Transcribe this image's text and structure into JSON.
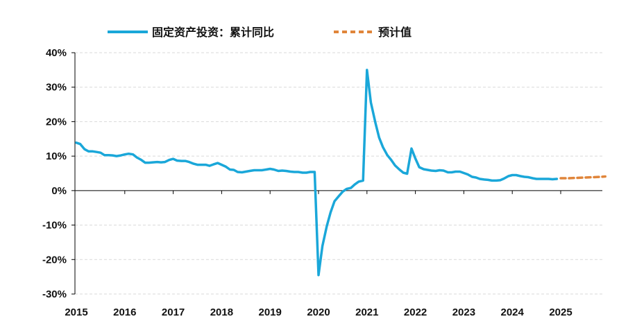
{
  "chart_data": {
    "type": "line",
    "title": "",
    "xlabel": "",
    "ylabel": "",
    "ylim": [
      -30,
      40
    ],
    "y_ticks": [
      "40%",
      "30%",
      "20%",
      "10%",
      "0%",
      "-10%",
      "-20%",
      "-30%"
    ],
    "y_tick_values": [
      40,
      30,
      20,
      10,
      0,
      -10,
      -20,
      -30
    ],
    "x_ticks": [
      "2015",
      "2016",
      "2017",
      "2018",
      "2019",
      "2020",
      "2021",
      "2022",
      "2023",
      "2024",
      "2025"
    ],
    "x_tick_values": [
      2015,
      2016,
      2017,
      2018,
      2019,
      2020,
      2021,
      2022,
      2023,
      2024,
      2025
    ],
    "xlim": [
      2015,
      2025.9
    ],
    "grid": "horizontal-dashed",
    "legend_position": "top",
    "series": [
      {
        "name": "固定资产投资：累计同比",
        "color": "#1aa7d9",
        "style": "solid",
        "x": [
          2015.0,
          2015.08,
          2015.17,
          2015.25,
          2015.33,
          2015.42,
          2015.5,
          2015.58,
          2015.67,
          2015.75,
          2015.83,
          2015.92,
          2016.0,
          2016.08,
          2016.17,
          2016.25,
          2016.33,
          2016.42,
          2016.5,
          2016.58,
          2016.67,
          2016.75,
          2016.83,
          2016.92,
          2017.0,
          2017.08,
          2017.17,
          2017.25,
          2017.33,
          2017.42,
          2017.5,
          2017.58,
          2017.67,
          2017.75,
          2017.83,
          2017.92,
          2018.0,
          2018.08,
          2018.17,
          2018.25,
          2018.33,
          2018.42,
          2018.5,
          2018.58,
          2018.67,
          2018.75,
          2018.83,
          2018.92,
          2019.0,
          2019.08,
          2019.17,
          2019.25,
          2019.33,
          2019.42,
          2019.5,
          2019.58,
          2019.67,
          2019.75,
          2019.83,
          2019.92,
          2020.0,
          2020.08,
          2020.17,
          2020.25,
          2020.33,
          2020.42,
          2020.5,
          2020.58,
          2020.67,
          2020.75,
          2020.83,
          2020.92,
          2021.0,
          2021.08,
          2021.17,
          2021.25,
          2021.33,
          2021.42,
          2021.5,
          2021.58,
          2021.67,
          2021.75,
          2021.83,
          2021.92,
          2022.0,
          2022.08,
          2022.17,
          2022.25,
          2022.33,
          2022.42,
          2022.5,
          2022.58,
          2022.67,
          2022.75,
          2022.83,
          2022.92,
          2023.0,
          2023.08,
          2023.17,
          2023.25,
          2023.33,
          2023.42,
          2023.5,
          2023.58,
          2023.67,
          2023.75,
          2023.83,
          2023.92,
          2024.0,
          2024.08,
          2024.17,
          2024.25,
          2024.33,
          2024.42,
          2024.5,
          2024.58,
          2024.67,
          2024.75,
          2024.83,
          2024.92
        ],
        "y": [
          13.9,
          13.5,
          12.0,
          11.4,
          11.4,
          11.2,
          11.0,
          10.3,
          10.3,
          10.2,
          10.0,
          10.2,
          10.5,
          10.7,
          10.5,
          9.6,
          9.0,
          8.1,
          8.1,
          8.2,
          8.3,
          8.2,
          8.3,
          8.9,
          9.2,
          8.7,
          8.6,
          8.6,
          8.3,
          7.8,
          7.5,
          7.5,
          7.5,
          7.2,
          7.6,
          8.0,
          7.5,
          7.0,
          6.1,
          6.0,
          5.4,
          5.3,
          5.5,
          5.7,
          5.9,
          5.9,
          5.9,
          6.1,
          6.3,
          6.1,
          5.7,
          5.8,
          5.7,
          5.5,
          5.4,
          5.4,
          5.2,
          5.2,
          5.4,
          5.4,
          -24.5,
          -16.1,
          -10.3,
          -6.3,
          -3.1,
          -1.6,
          -0.3,
          0.5,
          0.8,
          1.8,
          2.6,
          2.9,
          35.0,
          25.6,
          19.9,
          15.4,
          12.6,
          10.3,
          8.9,
          7.3,
          6.1,
          5.2,
          4.9,
          12.2,
          9.3,
          6.8,
          6.2,
          6.0,
          5.8,
          5.7,
          5.9,
          5.8,
          5.3,
          5.3,
          5.5,
          5.5,
          5.1,
          4.7,
          4.0,
          3.8,
          3.4,
          3.2,
          3.1,
          2.9,
          2.9,
          3.0,
          3.5,
          4.2,
          4.5,
          4.5,
          4.2,
          4.0,
          3.9,
          3.6,
          3.4,
          3.4,
          3.4,
          3.4,
          3.3,
          3.4
        ]
      },
      {
        "name": "预计值",
        "color": "#e0853a",
        "style": "dashed",
        "x": [
          2025.0,
          2025.17,
          2025.33,
          2025.5,
          2025.67,
          2025.83,
          2025.92
        ],
        "y": [
          3.6,
          3.6,
          3.7,
          3.8,
          3.9,
          4.0,
          4.1
        ]
      }
    ]
  }
}
